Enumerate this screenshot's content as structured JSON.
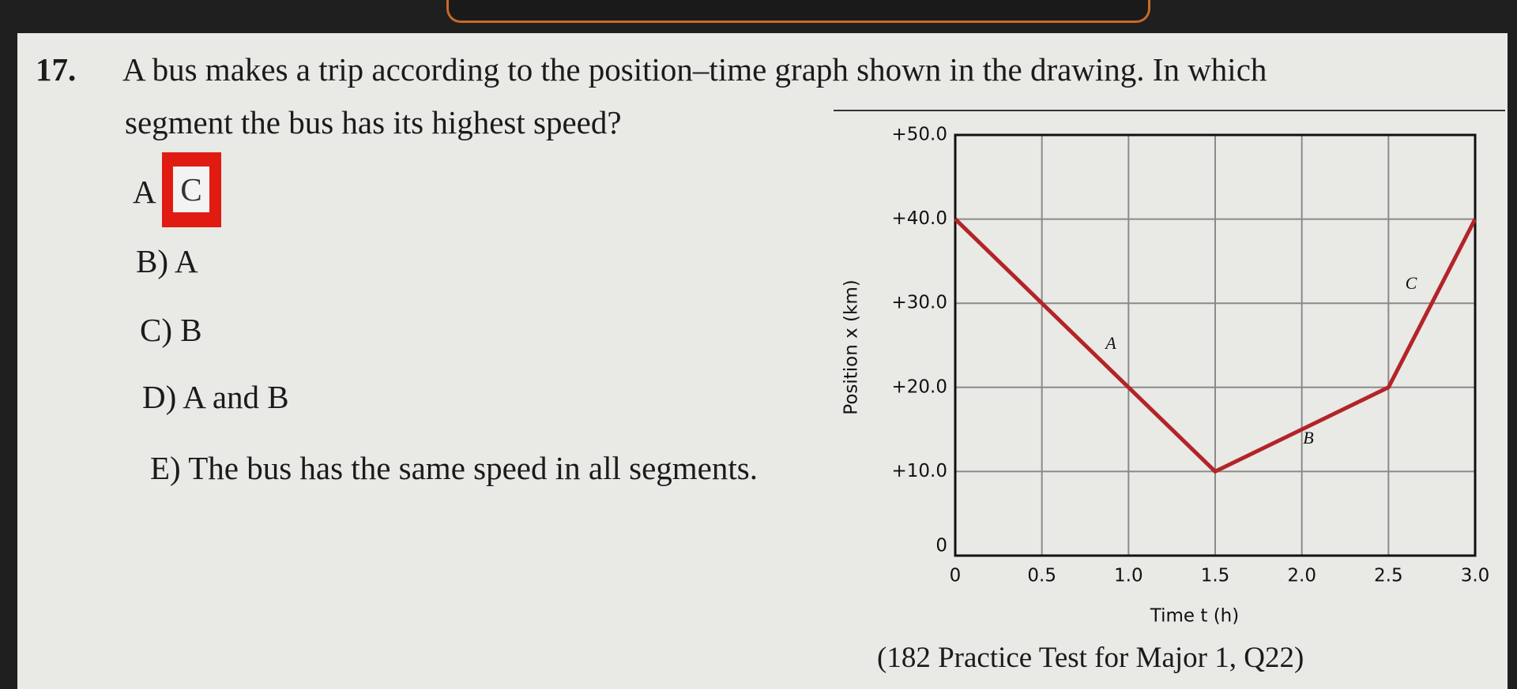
{
  "question": {
    "number": "17.",
    "line1": "A bus makes a trip according to the position–time graph shown in the drawing. In which",
    "line2": "segment the bus has its highest speed?",
    "answer": {
      "label": "A",
      "choice": "C"
    },
    "options": [
      "B) A",
      "C) B",
      "D) A and B",
      "E) The bus has the same speed in all segments."
    ]
  },
  "caption": "(182 Practice Test for Major 1, Q22)",
  "chart_data": {
    "type": "line",
    "x_label": "Time t (h)",
    "y_label": "Position x (km)",
    "x": [
      0,
      1.5,
      2.5,
      3.0
    ],
    "series": [
      {
        "name": "position",
        "color": "#b32428",
        "values": [
          40,
          10,
          20,
          40
        ]
      }
    ],
    "annotations": [
      "A",
      "B",
      "C"
    ],
    "xlim": [
      0,
      3.0
    ],
    "ylim": [
      0,
      50
    ],
    "xticks": [
      0,
      0.5,
      {
        "value": 1,
        "label": "1.0"
      },
      1.5,
      {
        "value": 2,
        "label": "2.0"
      },
      2.5,
      {
        "value": 3,
        "label": "3.0"
      }
    ],
    "yticks": [
      0,
      {
        "value": 10,
        "label": "+10.0"
      },
      {
        "value": 20,
        "label": "+20.0"
      },
      {
        "value": 30,
        "label": "+30.0"
      },
      {
        "value": 40,
        "label": "+40.0"
      },
      {
        "value": 50,
        "label": "+50.0"
      }
    ],
    "grid": true
  }
}
